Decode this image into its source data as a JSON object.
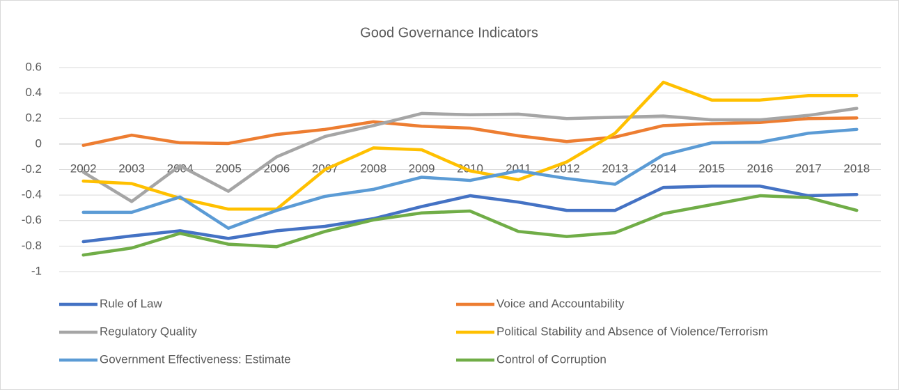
{
  "chart_data": {
    "type": "line",
    "title": "Good Governance Indicators",
    "categories": [
      "2002",
      "2003",
      "2004",
      "2005",
      "2006",
      "2007",
      "2008",
      "2009",
      "2010",
      "2011",
      "2012",
      "2013",
      "2014",
      "2015",
      "2016",
      "2017",
      "2018"
    ],
    "ylim": [
      -1,
      0.6
    ],
    "yticks": [
      -1,
      -0.8,
      -0.6,
      -0.4,
      -0.2,
      0,
      0.2,
      0.4,
      0.6
    ],
    "grid": true,
    "legend": "bottom",
    "series": [
      {
        "name": "Rule of Law",
        "color": "#4472c4",
        "values": [
          -0.765,
          -0.72,
          -0.68,
          -0.74,
          -0.68,
          -0.645,
          -0.585,
          -0.49,
          -0.405,
          -0.455,
          -0.52,
          -0.52,
          -0.34,
          -0.33,
          -0.33,
          -0.405,
          -0.395
        ]
      },
      {
        "name": "Voice and Accountability",
        "color": "#ed7d31",
        "values": [
          -0.01,
          0.07,
          0.01,
          0.005,
          0.075,
          0.115,
          0.175,
          0.14,
          0.125,
          0.065,
          0.02,
          0.055,
          0.145,
          0.16,
          0.17,
          0.2,
          0.205
        ]
      },
      {
        "name": "Regulatory Quality",
        "color": "#a5a5a5",
        "values": [
          -0.22,
          -0.45,
          -0.17,
          -0.37,
          -0.1,
          0.06,
          0.145,
          0.24,
          0.23,
          0.235,
          0.2,
          0.21,
          0.22,
          0.19,
          0.19,
          0.225,
          0.28
        ]
      },
      {
        "name": "Political Stability and Absence of Violence/Terrorism",
        "color": "#ffc000",
        "values": [
          -0.29,
          -0.31,
          -0.425,
          -0.51,
          -0.51,
          -0.2,
          -0.03,
          -0.045,
          -0.21,
          -0.28,
          -0.14,
          0.085,
          0.485,
          0.345,
          0.345,
          0.38,
          0.38
        ]
      },
      {
        "name": "Government Effectiveness: Estimate",
        "color": "#5b9bd5",
        "values": [
          -0.535,
          -0.535,
          -0.415,
          -0.66,
          -0.52,
          -0.41,
          -0.355,
          -0.26,
          -0.285,
          -0.21,
          -0.27,
          -0.315,
          -0.085,
          0.01,
          0.015,
          0.085,
          0.115
        ]
      },
      {
        "name": "Control of Corruption",
        "color": "#70ad47",
        "values": [
          -0.87,
          -0.815,
          -0.7,
          -0.785,
          -0.805,
          -0.685,
          -0.595,
          -0.54,
          -0.525,
          -0.685,
          -0.725,
          -0.695,
          -0.545,
          -0.475,
          -0.405,
          -0.42,
          -0.52
        ]
      }
    ]
  }
}
